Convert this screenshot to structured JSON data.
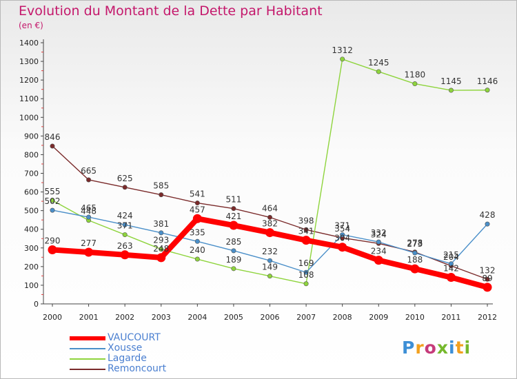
{
  "header": {
    "title": "Evolution du Montant de la Dette par Habitant",
    "subtitle": "(en €)"
  },
  "logo": {
    "text": "Proxiti",
    "colors": [
      "#3d8fd6",
      "#f2a01e",
      "#c63b7a",
      "#75b82c"
    ]
  },
  "chart_data": {
    "type": "line",
    "title": "Evolution du Montant de la Dette par Habitant",
    "subtitle": "(en €)",
    "xlabel": "",
    "ylabel": "",
    "ylim": [
      0,
      1400
    ],
    "yticks": [
      0,
      100,
      200,
      300,
      400,
      500,
      600,
      700,
      800,
      900,
      1000,
      1100,
      1200,
      1300,
      1400
    ],
    "x": [
      "2000",
      "2001",
      "2002",
      "2003",
      "2004",
      "2005",
      "2006",
      "2007",
      "2008",
      "2009",
      "2010",
      "2011",
      "2012"
    ],
    "grid": false,
    "legend_position": "bottom-left",
    "series": [
      {
        "name": "VAUCOURT",
        "color": "#ff0000",
        "values": [
          290,
          277,
          263,
          248,
          457,
          421,
          382,
          341,
          304,
          234,
          188,
          142,
          89
        ],
        "labels": [
          "290",
          "277",
          "263",
          "248",
          "457",
          "421",
          "382",
          "341",
          "304",
          "234",
          "188",
          "142",
          "89"
        ]
      },
      {
        "name": "Xousse",
        "color": "#4a8fc9",
        "values": [
          502,
          465,
          424,
          381,
          335,
          285,
          232,
          169,
          371,
          332,
          273,
          215,
          428
        ],
        "labels": [
          "502",
          "465",
          "424",
          "381",
          "335",
          "285",
          "232",
          "169",
          "371",
          "332",
          "273",
          "215",
          "428"
        ]
      },
      {
        "name": "Lagarde",
        "color": "#8ed43c",
        "values": [
          555,
          448,
          371,
          293,
          240,
          189,
          149,
          108,
          1312,
          1245,
          1180,
          1145,
          1146
        ],
        "labels": [
          "555",
          "448",
          "371",
          "293",
          "240",
          "189",
          "149",
          "108",
          "1312",
          "1245",
          "1180",
          "1145",
          "1146"
        ]
      },
      {
        "name": "Remoncourt",
        "color": "#7a2a2a",
        "values": [
          846,
          665,
          625,
          585,
          541,
          511,
          464,
          398,
          354,
          324,
          278,
          204,
          132
        ],
        "labels": [
          "846",
          "665",
          "625",
          "585",
          "541",
          "511",
          "464",
          "398",
          "354",
          "324",
          "278",
          "204",
          "132"
        ]
      }
    ]
  }
}
